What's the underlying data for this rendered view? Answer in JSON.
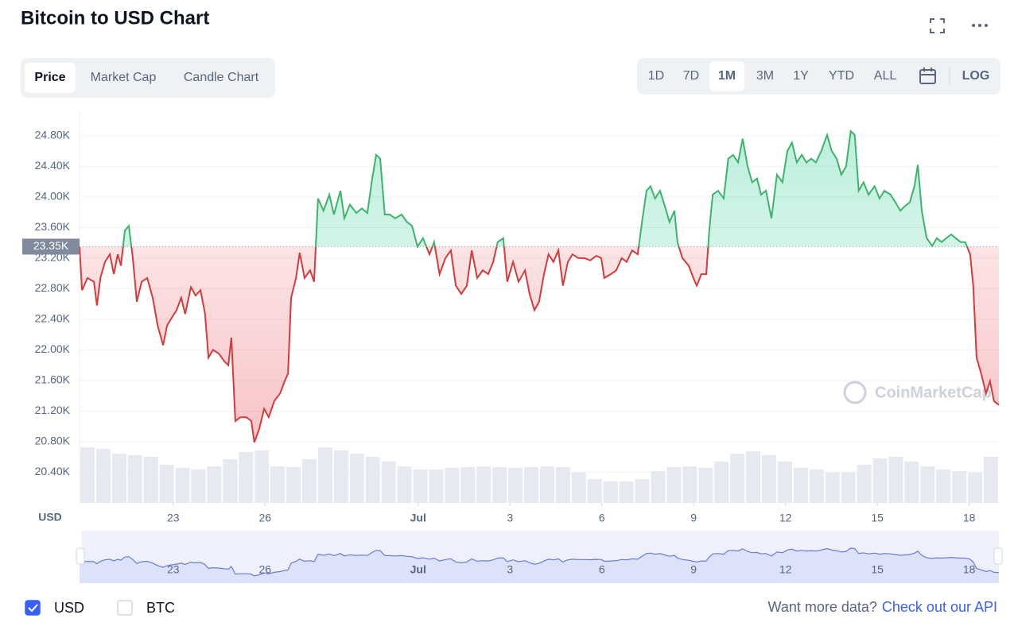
{
  "header": {
    "title": "Bitcoin to USD Chart"
  },
  "tabs": [
    "Price",
    "Market Cap",
    "Candle Chart"
  ],
  "active_tab": 0,
  "ranges": [
    "1D",
    "7D",
    "1M",
    "3M",
    "1Y",
    "YTD",
    "ALL"
  ],
  "active_range": 2,
  "log": "LOG",
  "currencies": [
    "USD",
    "BTC"
  ],
  "checked": [
    true,
    false
  ],
  "footer": {
    "prompt": "Want more data?",
    "link": "Check out our API"
  },
  "chart_data": {
    "type": "line",
    "y_unit": "USD",
    "watermark": "CoinMarketCap",
    "up_color": "#3db36b",
    "down_color": "#d43b3b",
    "nav_color": "#6b7bd8",
    "grid": true,
    "xlim": [
      19.94,
      49.97
    ],
    "xticks": [
      23,
      26,
      {
        "value": 31,
        "label": "Jul"
      },
      {
        "value": 34,
        "label": "3"
      },
      {
        "value": 37,
        "label": "6"
      },
      {
        "value": 40,
        "label": "9"
      },
      {
        "value": 43,
        "label": "12"
      },
      {
        "value": 46,
        "label": "15"
      },
      {
        "value": 49,
        "label": "18"
      }
    ],
    "ylim": [
      20000,
      25120
    ],
    "yticks": [
      {
        "value": 20400,
        "label": "20.40K"
      },
      {
        "value": 20800,
        "label": "20.80K"
      },
      {
        "value": 21200,
        "label": "21.20K"
      },
      {
        "value": 21600,
        "label": "21.60K"
      },
      {
        "value": 22000,
        "label": "22.00K"
      },
      {
        "value": 22400,
        "label": "22.40K"
      },
      {
        "value": 22800,
        "label": "22.80K"
      },
      {
        "value": 23200,
        "label": "23.20K"
      },
      {
        "value": 23600,
        "label": "23.60K"
      },
      {
        "value": 24000,
        "label": "24.00K"
      },
      {
        "value": 24400,
        "label": "24.40K"
      },
      {
        "value": 24800,
        "label": "24.80K"
      }
    ],
    "reference": {
      "value": 23350,
      "label": "23.35K"
    },
    "x": [
      19.94,
      20.02,
      20.2,
      20.41,
      20.51,
      20.62,
      20.77,
      20.93,
      21.06,
      21.19,
      21.29,
      21.42,
      21.55,
      21.68,
      21.81,
      21.97,
      22.15,
      22.33,
      22.49,
      22.67,
      22.8,
      22.95,
      23.11,
      23.26,
      23.39,
      23.58,
      23.73,
      23.89,
      24.04,
      24.15,
      24.3,
      24.49,
      24.67,
      24.8,
      24.9,
      25.03,
      25.19,
      25.39,
      25.55,
      25.65,
      25.81,
      25.97,
      26.12,
      26.3,
      26.49,
      26.64,
      26.75,
      26.85,
      27.01,
      27.13,
      27.29,
      27.47,
      27.6,
      27.73,
      27.91,
      28.1,
      28.25,
      28.46,
      28.59,
      28.77,
      28.98,
      29.16,
      29.34,
      29.5,
      29.63,
      29.76,
      29.91,
      30.07,
      30.25,
      30.46,
      30.64,
      30.8,
      30.98,
      31.16,
      31.37,
      31.52,
      31.7,
      31.89,
      32.07,
      32.23,
      32.41,
      32.59,
      32.75,
      32.93,
      33.11,
      33.29,
      33.45,
      33.6,
      33.78,
      33.91,
      34.1,
      34.28,
      34.49,
      34.64,
      34.8,
      34.95,
      35.11,
      35.26,
      35.42,
      35.58,
      35.73,
      35.89,
      36.04,
      36.23,
      36.43,
      36.62,
      36.82,
      36.98,
      37.08,
      37.29,
      37.47,
      37.65,
      37.81,
      37.99,
      38.17,
      38.33,
      38.46,
      38.59,
      38.74,
      38.9,
      39.06,
      39.21,
      39.37,
      39.47,
      39.63,
      39.84,
      39.99,
      40.1,
      40.25,
      40.41,
      40.51,
      40.62,
      40.8,
      40.98,
      41.13,
      41.29,
      41.45,
      41.6,
      41.76,
      41.91,
      42.07,
      42.2,
      42.36,
      42.54,
      42.72,
      42.9,
      43.06,
      43.21,
      43.37,
      43.53,
      43.68,
      43.84,
      43.99,
      44.17,
      44.36,
      44.51,
      44.67,
      44.82,
      44.98,
      45.13,
      45.26,
      45.39,
      45.55,
      45.71,
      45.91,
      46.07,
      46.23,
      46.43,
      46.59,
      46.75,
      46.9,
      47.06,
      47.21,
      47.32,
      47.45,
      47.61,
      47.79,
      47.94,
      48.1,
      48.25,
      48.41,
      48.56,
      48.72,
      48.87,
      49.03,
      49.13,
      49.24,
      49.39,
      49.55,
      49.68,
      49.81,
      49.97
    ],
    "values": [
      23350,
      22780,
      22940,
      22890,
      22580,
      22940,
      23150,
      23250,
      22990,
      23250,
      23100,
      23560,
      23620,
      23200,
      22630,
      22890,
      22940,
      22680,
      22320,
      22060,
      22320,
      22420,
      22520,
      22680,
      22470,
      22820,
      22710,
      22780,
      22470,
      21900,
      22000,
      21950,
      21850,
      21800,
      22160,
      21070,
      21120,
      21120,
      21070,
      20790,
      20970,
      21230,
      21120,
      21330,
      21430,
      21590,
      21690,
      22680,
      22940,
      23270,
      22940,
      23040,
      22890,
      23980,
      23820,
      24030,
      23770,
      24080,
      23720,
      23900,
      23790,
      23850,
      23790,
      24240,
      24550,
      24500,
      23770,
      23770,
      23720,
      23770,
      23670,
      23620,
      23350,
      23460,
      23250,
      23410,
      22990,
      23200,
      23300,
      22840,
      22730,
      22840,
      23300,
      22940,
      23040,
      22990,
      23150,
      23410,
      23460,
      22890,
      23150,
      22890,
      23040,
      22730,
      22520,
      22630,
      22990,
      23250,
      23150,
      23300,
      22840,
      23150,
      23250,
      23200,
      23200,
      23170,
      23230,
      23200,
      22940,
      22990,
      23040,
      23200,
      23150,
      23300,
      23250,
      23720,
      24080,
      24140,
      23980,
      24080,
      23880,
      23670,
      23820,
      23410,
      23200,
      23100,
      22940,
      22840,
      22990,
      22990,
      23560,
      24030,
      24080,
      23980,
      24500,
      24550,
      24450,
      24760,
      24400,
      24190,
      24240,
      24030,
      24080,
      23720,
      24290,
      24190,
      24600,
      24710,
      24450,
      24550,
      24450,
      24500,
      24450,
      24600,
      24810,
      24600,
      24500,
      24290,
      24400,
      24860,
      24810,
      24080,
      24190,
      24030,
      24140,
      23980,
      24080,
      24030,
      23930,
      23820,
      23880,
      23930,
      24140,
      24420,
      23820,
      23460,
      23360,
      23460,
      23410,
      23460,
      23510,
      23460,
      23410,
      23410,
      23250,
      22840,
      21900,
      21690,
      21430,
      21590,
      21330,
      21280
    ],
    "volume": {
      "lim": [
        0,
        80
      ],
      "values": [
        70,
        68,
        62,
        60,
        58,
        48,
        44,
        42,
        46,
        55,
        64,
        66,
        46,
        45,
        55,
        70,
        66,
        62,
        58,
        52,
        46,
        42,
        42,
        44,
        45,
        46,
        45,
        44,
        45,
        46,
        45,
        38,
        30,
        27,
        27,
        30,
        40,
        45,
        46,
        44,
        52,
        62,
        65,
        60,
        52,
        44,
        42,
        38,
        38,
        48,
        56,
        58,
        52,
        46,
        42,
        40,
        38,
        58
      ]
    }
  }
}
